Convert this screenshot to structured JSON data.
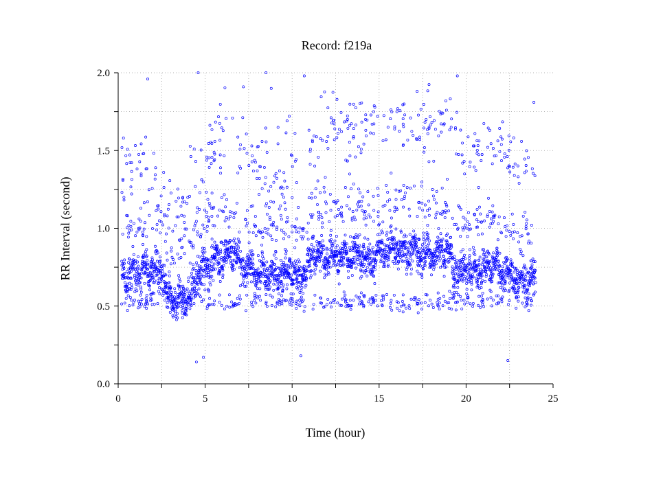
{
  "chart_data": {
    "type": "scatter",
    "title": "Record:  f219a",
    "xlabel": "Time (hour)",
    "ylabel": "RR Interval (second)",
    "xlim": [
      0,
      25
    ],
    "ylim": [
      0,
      2.0
    ],
    "xticks": [
      0,
      5,
      10,
      15,
      20,
      25
    ],
    "yticks": [
      0.0,
      0.5,
      1.0,
      1.5,
      2.0
    ],
    "xtick_labels": [
      "0",
      "5",
      "10",
      "15",
      "20",
      "25"
    ],
    "ytick_labels": [
      "0.0",
      "0.5",
      "1.0",
      "1.5",
      "2.0"
    ],
    "grid": true,
    "grid_style": "dotted",
    "marker": "open-circle",
    "series_color": "#0000ff",
    "data_span_hours": [
      0.2,
      24.0
    ],
    "baseline_profile": [
      {
        "x": 0.2,
        "y": 0.72
      },
      {
        "x": 1.0,
        "y": 0.7
      },
      {
        "x": 2.0,
        "y": 0.74
      },
      {
        "x": 2.6,
        "y": 0.72
      },
      {
        "x": 2.8,
        "y": 0.55
      },
      {
        "x": 3.5,
        "y": 0.53
      },
      {
        "x": 4.2,
        "y": 0.55
      },
      {
        "x": 4.4,
        "y": 0.68
      },
      {
        "x": 5.0,
        "y": 0.75
      },
      {
        "x": 6.0,
        "y": 0.82
      },
      {
        "x": 6.8,
        "y": 0.84
      },
      {
        "x": 7.0,
        "y": 0.76
      },
      {
        "x": 8.0,
        "y": 0.72
      },
      {
        "x": 9.0,
        "y": 0.7
      },
      {
        "x": 10.0,
        "y": 0.72
      },
      {
        "x": 10.5,
        "y": 0.66
      },
      {
        "x": 11.2,
        "y": 0.85
      },
      {
        "x": 12.0,
        "y": 0.82
      },
      {
        "x": 13.0,
        "y": 0.82
      },
      {
        "x": 14.0,
        "y": 0.84
      },
      {
        "x": 14.4,
        "y": 0.76
      },
      {
        "x": 15.0,
        "y": 0.86
      },
      {
        "x": 16.0,
        "y": 0.88
      },
      {
        "x": 17.0,
        "y": 0.85
      },
      {
        "x": 18.0,
        "y": 0.84
      },
      {
        "x": 19.0,
        "y": 0.85
      },
      {
        "x": 19.3,
        "y": 0.73
      },
      {
        "x": 20.0,
        "y": 0.72
      },
      {
        "x": 21.0,
        "y": 0.74
      },
      {
        "x": 21.6,
        "y": 0.78
      },
      {
        "x": 22.0,
        "y": 0.72
      },
      {
        "x": 23.0,
        "y": 0.68
      },
      {
        "x": 24.0,
        "y": 0.68
      }
    ],
    "main_band_spread": 0.1,
    "upper_cluster_profile": [
      {
        "x": 0.2,
        "y": 1.4
      },
      {
        "x": 1.5,
        "y": 1.4
      },
      {
        "x": 3.5,
        "y": 1.1
      },
      {
        "x": 4.5,
        "y": 1.35
      },
      {
        "x": 6.0,
        "y": 1.62
      },
      {
        "x": 7.5,
        "y": 1.5
      },
      {
        "x": 9.0,
        "y": 1.35
      },
      {
        "x": 10.5,
        "y": 1.4
      },
      {
        "x": 12.0,
        "y": 1.62
      },
      {
        "x": 14.0,
        "y": 1.68
      },
      {
        "x": 16.0,
        "y": 1.7
      },
      {
        "x": 18.0,
        "y": 1.7
      },
      {
        "x": 19.0,
        "y": 1.72
      },
      {
        "x": 20.0,
        "y": 1.45
      },
      {
        "x": 22.0,
        "y": 1.5
      },
      {
        "x": 23.0,
        "y": 1.4
      },
      {
        "x": 24.0,
        "y": 1.28
      }
    ],
    "lower_cluster_y": 0.53,
    "notable_outliers": [
      {
        "x": 1.7,
        "y": 1.96
      },
      {
        "x": 4.6,
        "y": 2.0
      },
      {
        "x": 4.5,
        "y": 0.14
      },
      {
        "x": 4.9,
        "y": 0.17
      },
      {
        "x": 7.2,
        "y": 1.91
      },
      {
        "x": 8.5,
        "y": 2.0
      },
      {
        "x": 8.8,
        "y": 1.9
      },
      {
        "x": 10.5,
        "y": 0.18
      },
      {
        "x": 10.7,
        "y": 1.98
      },
      {
        "x": 19.5,
        "y": 1.98
      },
      {
        "x": 22.4,
        "y": 0.15
      },
      {
        "x": 23.9,
        "y": 1.81
      }
    ]
  }
}
